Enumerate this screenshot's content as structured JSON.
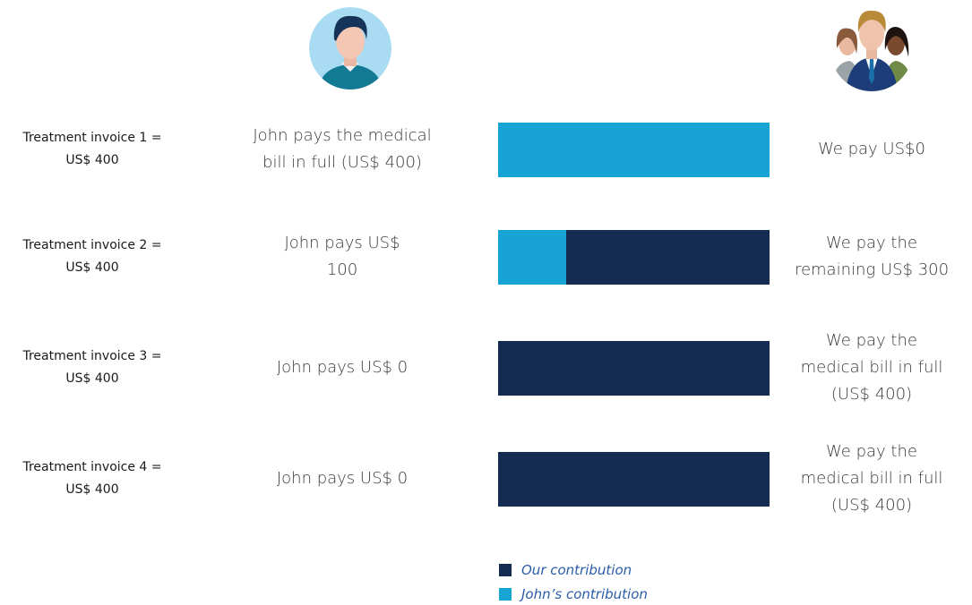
{
  "chart_data": {
    "type": "bar",
    "orientation": "horizontal",
    "stacked": true,
    "categories": [
      "Treatment invoice 1 =\nUS$ 400",
      "Treatment invoice 2 =\nUS$ 400",
      "Treatment invoice 3 =\nUS$ 400",
      "Treatment invoice 4 =\nUS$ 400"
    ],
    "left_annotations": [
      "John pays the medical\nbill in full (US$ 400)",
      "John pays US$\n100",
      "John pays US$ 0",
      "John pays US$ 0"
    ],
    "right_annotations": [
      "We pay US$0",
      "We pay the\nremaining US$ 300",
      "We pay the\nmedical bill in full\n(US$ 400)",
      "We pay the\nmedical bill in full\n(US$ 400)"
    ],
    "series": [
      {
        "name": "Our contribution",
        "color": "#152c52",
        "values": [
          0,
          300,
          400,
          400
        ]
      },
      {
        "name": "John’s contribution",
        "color": "#17a3d3",
        "values": [
          400,
          100,
          0,
          0
        ]
      }
    ],
    "xlim": [
      0,
      400
    ],
    "legend": "bottom"
  }
}
